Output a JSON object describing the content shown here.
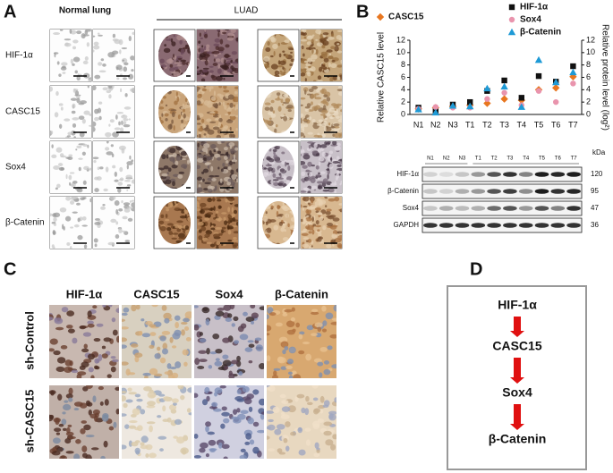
{
  "panel_labels": [
    "A",
    "B",
    "C",
    "D"
  ],
  "panel_a": {
    "column_headers": [
      "Normal lung",
      "LUAD"
    ],
    "row_labels": [
      "HIF-1α",
      "CASC15",
      "Sox4",
      "β-Catenin"
    ]
  },
  "chart_data": {
    "type": "scatter",
    "categories": [
      "N1",
      "N2",
      "N3",
      "T1",
      "T2",
      "T3",
      "T4",
      "T5",
      "T6",
      "T7"
    ],
    "y_label": "Relative CASC15 level",
    "y2_label": "Relative protein level (log²)",
    "ylim": [
      0,
      12
    ],
    "yticks": [
      0,
      2,
      4,
      6,
      8,
      10,
      12
    ],
    "y2lim": [
      0,
      12
    ],
    "y2ticks": [
      0,
      2,
      4,
      6,
      8,
      10,
      12
    ],
    "series": [
      {
        "name": "CASC15",
        "color": "#e8761f",
        "marker": "diamond",
        "values": [
          0.9,
          1.1,
          1.3,
          1.5,
          1.8,
          2.5,
          2.3,
          4.0,
          4.3,
          6.1
        ]
      },
      {
        "name": "HIF-1α",
        "color": "#111111",
        "marker": "square",
        "axis": "y2",
        "values": [
          1.1,
          0.5,
          1.6,
          2.0,
          3.8,
          5.5,
          2.7,
          6.2,
          5.3,
          7.8
        ]
      },
      {
        "name": "Sox4",
        "color": "#e994ad",
        "marker": "circle",
        "axis": "y2",
        "values": [
          0.9,
          1.2,
          1.1,
          1.1,
          2.5,
          3.5,
          1.5,
          3.8,
          2.0,
          5.0
        ]
      },
      {
        "name": "β-Catenin",
        "color": "#1e9ad6",
        "marker": "triangle",
        "axis": "y2",
        "values": [
          0.8,
          0.3,
          1.4,
          1.3,
          4.2,
          4.5,
          1.2,
          8.8,
          5.2,
          6.8
        ]
      }
    ]
  },
  "western_blot": {
    "lanes": [
      "N1",
      "N2",
      "N3",
      "T1",
      "T2",
      "T3",
      "T4",
      "T5",
      "T6",
      "T7"
    ],
    "unit": "kDa",
    "rows": [
      {
        "label": "HIF-1α",
        "kda": 120
      },
      {
        "label": "β-Catenin",
        "kda": 95
      },
      {
        "label": "Sox4",
        "kda": 47
      },
      {
        "label": "GAPDH",
        "kda": 36
      }
    ]
  },
  "panel_c": {
    "column_headers": [
      "HIF-1α",
      "CASC15",
      "Sox4",
      "β-Catenin"
    ],
    "row_labels": [
      "sh-Control",
      "sh-CASC15"
    ]
  },
  "panel_d": {
    "nodes": [
      "HIF-1α",
      "CASC15",
      "Sox4",
      "β-Catenin"
    ]
  }
}
